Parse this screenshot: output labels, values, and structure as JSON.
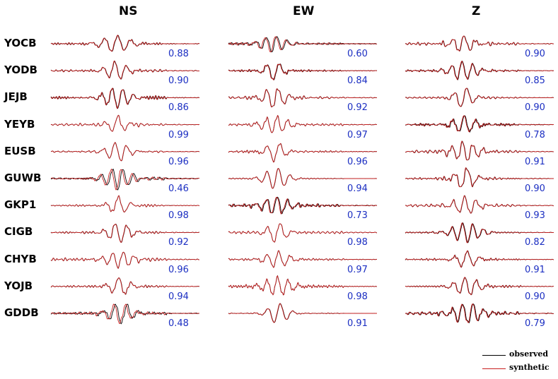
{
  "components": [
    "NS",
    "EW",
    "Z"
  ],
  "stations": [
    "YOCB",
    "YODB",
    "JEJB",
    "YEYB",
    "EUSB",
    "GUWB",
    "GKP1",
    "CIGB",
    "CHYB",
    "YOJB",
    "GDDB"
  ],
  "correlations": {
    "NS": [
      "0.88",
      "0.90",
      "0.86",
      "0.99",
      "0.96",
      "0.46",
      "0.98",
      "0.92",
      "0.96",
      "0.94",
      "0.48"
    ],
    "EW": [
      "0.60",
      "0.84",
      "0.92",
      "0.97",
      "0.96",
      "0.94",
      "0.73",
      "0.98",
      "0.97",
      "0.98",
      "0.91"
    ],
    "Z": [
      "0.90",
      "0.85",
      "0.90",
      "0.78",
      "0.91",
      "0.90",
      "0.93",
      "0.82",
      "0.91",
      "0.90",
      "0.79"
    ]
  },
  "legend": {
    "observed": "observed",
    "synthetic": "synthetic"
  },
  "colors": {
    "observed": "#000000",
    "synthetic": "#c81e1e",
    "correlation_text": "#1c2fc2"
  }
}
